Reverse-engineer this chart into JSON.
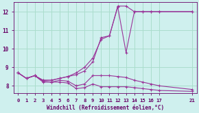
{
  "background_color": "#cff0ee",
  "grid_color": "#aaddcc",
  "line_color": "#993399",
  "xlabel": "Windchill (Refroidissement éolien,°C)",
  "xlabel_color": "#660066",
  "tick_color": "#660066",
  "ylim": [
    7.6,
    12.5
  ],
  "xlim": [
    -0.5,
    21.5
  ],
  "yticks": [
    8,
    9,
    10,
    11,
    12
  ],
  "xticks": [
    0,
    1,
    2,
    3,
    4,
    5,
    6,
    7,
    8,
    9,
    10,
    11,
    12,
    13,
    14,
    15,
    16,
    17,
    21
  ],
  "series": [
    {
      "x": [
        0,
        1,
        2,
        3,
        4,
        5,
        6,
        7,
        8,
        9,
        10,
        11,
        12,
        13,
        14,
        15,
        16,
        17,
        21
      ],
      "y": [
        8.7,
        8.4,
        8.55,
        8.3,
        8.3,
        8.4,
        8.5,
        8.7,
        9.0,
        9.5,
        10.5,
        10.7,
        12.25,
        9.8,
        12.0,
        12.0,
        12.0,
        12.0,
        12.0
      ]
    },
    {
      "x": [
        0,
        1,
        2,
        3,
        4,
        5,
        6,
        7,
        8,
        9,
        10,
        11,
        12,
        13,
        14,
        15,
        16,
        17,
        21
      ],
      "y": [
        8.7,
        8.4,
        8.55,
        8.3,
        8.3,
        8.4,
        8.5,
        8.6,
        8.8,
        9.3,
        10.6,
        10.7,
        12.3,
        12.3,
        12.0,
        12.0,
        12.0,
        12.0,
        12.0
      ]
    },
    {
      "x": [
        0,
        1,
        2,
        3,
        4,
        5,
        6,
        7,
        8,
        9,
        10,
        11,
        12,
        13,
        14,
        15,
        16,
        17,
        21
      ],
      "y": [
        8.7,
        8.4,
        8.55,
        8.25,
        8.2,
        8.3,
        8.25,
        8.0,
        8.1,
        8.55,
        8.55,
        8.55,
        8.5,
        8.45,
        8.3,
        8.2,
        8.1,
        8.0,
        7.8
      ]
    },
    {
      "x": [
        0,
        1,
        2,
        3,
        4,
        5,
        6,
        7,
        8,
        9,
        10,
        11,
        12,
        13,
        14,
        15,
        16,
        17,
        21
      ],
      "y": [
        8.7,
        8.4,
        8.55,
        8.2,
        8.2,
        8.2,
        8.15,
        7.85,
        7.9,
        8.1,
        7.95,
        7.95,
        7.95,
        7.95,
        7.9,
        7.85,
        7.8,
        7.75,
        7.7
      ]
    }
  ]
}
